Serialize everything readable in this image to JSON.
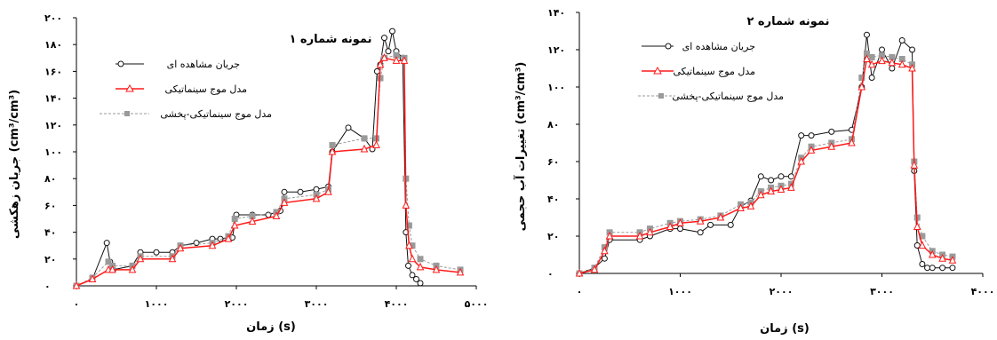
{
  "figure_colors": {
    "observed": "#111111",
    "kinematic": "#ff1a1a",
    "diffusion": "#9a9a9a"
  },
  "chart_data": [
    {
      "type": "line",
      "title": "نمونه شماره ۱",
      "xlabel": "زمان (s)",
      "ylabel": "جریان زهکشی (cm³/cm³)",
      "xlim": [
        0,
        5000
      ],
      "ylim": [
        0,
        200
      ],
      "x_ticks": [
        0,
        1000,
        2000,
        3000,
        4000,
        5000
      ],
      "x_tick_labels": [
        "۰",
        "۱۰۰۰",
        "۲۰۰۰",
        "۳۰۰۰",
        "۴۰۰۰",
        "۵۰۰۰"
      ],
      "y_ticks": [
        0,
        20,
        40,
        60,
        80,
        100,
        120,
        140,
        160,
        180,
        200
      ],
      "y_tick_labels": [
        "۰",
        "۲۰",
        "۴۰",
        "۶۰",
        "۸۰",
        "۱۰۰",
        "۱۲۰",
        "۱۴۰",
        "۱۶۰",
        "۱۸۰",
        "۲۰۰"
      ],
      "legend_position": "top-left",
      "series": [
        {
          "name": "جریان مشاهده ای",
          "marker": "circle",
          "x": [
            0,
            200,
            380,
            420,
            460,
            700,
            800,
            1000,
            1200,
            1300,
            1500,
            1700,
            1800,
            1950,
            2000,
            2200,
            2400,
            2550,
            2600,
            2800,
            3000,
            3150,
            3200,
            3400,
            3600,
            3700,
            3760,
            3800,
            3850,
            3900,
            3950,
            4000,
            4080,
            4120,
            4150,
            4200,
            4250,
            4300
          ],
          "y": [
            0,
            5,
            32,
            18,
            12,
            15,
            25,
            25,
            25,
            30,
            32,
            35,
            35,
            36,
            53,
            53,
            53,
            56,
            70,
            70,
            72,
            74,
            100,
            118,
            110,
            102,
            160,
            165,
            185,
            175,
            190,
            175,
            170,
            40,
            15,
            8,
            5,
            2
          ]
        },
        {
          "name": "مدل موج سینماتیکی",
          "marker": "triangle",
          "x": [
            0,
            200,
            400,
            450,
            700,
            800,
            1200,
            1300,
            1700,
            1900,
            1980,
            2200,
            2500,
            2600,
            3000,
            3150,
            3200,
            3600,
            3750,
            3800,
            3850,
            4000,
            4100,
            4120,
            4160,
            4200,
            4300,
            4500,
            4800
          ],
          "y": [
            0,
            5,
            12,
            12,
            12,
            20,
            20,
            28,
            30,
            35,
            45,
            48,
            52,
            62,
            65,
            70,
            100,
            102,
            105,
            165,
            170,
            168,
            168,
            60,
            30,
            20,
            14,
            12,
            10
          ]
        },
        {
          "name": "مدل موج سینماتیکی-پخشی",
          "marker": "square",
          "x": [
            0,
            200,
            400,
            450,
            700,
            800,
            1200,
            1300,
            1700,
            1900,
            1980,
            2200,
            2500,
            2600,
            3000,
            3150,
            3200,
            3600,
            3750,
            3800,
            3850,
            4000,
            4100,
            4120,
            4160,
            4200,
            4300,
            4500,
            4800
          ],
          "y": [
            0,
            6,
            18,
            15,
            15,
            22,
            22,
            30,
            32,
            37,
            50,
            52,
            55,
            65,
            68,
            72,
            105,
            110,
            110,
            155,
            170,
            172,
            170,
            80,
            45,
            30,
            20,
            15,
            12
          ]
        }
      ]
    },
    {
      "type": "line",
      "title": "نمونه شماره ۲",
      "xlabel": "زمان (s)",
      "ylabel": "تغییرات آب حجمی (cm³/cm³)",
      "xlim": [
        0,
        4000
      ],
      "ylim": [
        0,
        140
      ],
      "x_ticks": [
        0,
        1000,
        2000,
        3000,
        4000
      ],
      "x_tick_labels": [
        "۰",
        "۱۰۰۰",
        "۲۰۰۰",
        "۳۰۰۰",
        "۴۰۰۰"
      ],
      "y_ticks": [
        0,
        20,
        40,
        60,
        80,
        100,
        120,
        140
      ],
      "y_tick_labels": [
        "۰",
        "۲۰",
        "۴۰",
        "۶۰",
        "۸۰",
        "۱۰۰",
        "۱۲۰",
        "۱۴۰"
      ],
      "legend_position": "top-left",
      "series": [
        {
          "name": "جریان مشاهده ای",
          "marker": "circle",
          "x": [
            0,
            150,
            250,
            300,
            600,
            700,
            900,
            1000,
            1200,
            1300,
            1500,
            1600,
            1700,
            1800,
            1900,
            2000,
            2100,
            2200,
            2300,
            2500,
            2700,
            2800,
            2850,
            2900,
            3000,
            3100,
            3200,
            3300,
            3320,
            3350,
            3400,
            3450,
            3500,
            3600,
            3700
          ],
          "y": [
            0,
            3,
            8,
            18,
            18,
            20,
            24,
            24,
            22,
            26,
            26,
            36,
            39,
            52,
            50,
            52,
            52,
            74,
            74,
            76,
            77,
            100,
            128,
            105,
            120,
            110,
            125,
            120,
            55,
            15,
            5,
            3,
            3,
            3,
            3
          ]
        },
        {
          "name": "مدل موج سینماتیکی",
          "marker": "triangle",
          "x": [
            0,
            150,
            250,
            300,
            600,
            700,
            900,
            1000,
            1200,
            1400,
            1600,
            1700,
            1800,
            1900,
            2000,
            2100,
            2200,
            2300,
            2500,
            2700,
            2800,
            2850,
            2900,
            3000,
            3100,
            3200,
            3300,
            3320,
            3350,
            3400,
            3500,
            3600,
            3700
          ],
          "y": [
            0,
            2,
            12,
            20,
            20,
            22,
            25,
            27,
            28,
            30,
            35,
            36,
            42,
            44,
            45,
            46,
            60,
            66,
            68,
            70,
            100,
            115,
            112,
            114,
            113,
            112,
            110,
            58,
            25,
            15,
            10,
            8,
            7
          ]
        },
        {
          "name": "مدل موج سینماتیکی-پخشی",
          "marker": "square",
          "x": [
            0,
            150,
            250,
            300,
            600,
            700,
            900,
            1000,
            1200,
            1400,
            1600,
            1700,
            1800,
            1900,
            2000,
            2100,
            2200,
            2300,
            2500,
            2700,
            2800,
            2850,
            2900,
            3000,
            3100,
            3200,
            3300,
            3320,
            3350,
            3400,
            3500,
            3600,
            3700
          ],
          "y": [
            0,
            3,
            14,
            22,
            22,
            24,
            27,
            28,
            29,
            31,
            37,
            38,
            44,
            46,
            47,
            48,
            62,
            68,
            70,
            72,
            105,
            118,
            116,
            117,
            116,
            115,
            112,
            60,
            30,
            20,
            12,
            10,
            9
          ]
        }
      ]
    }
  ]
}
